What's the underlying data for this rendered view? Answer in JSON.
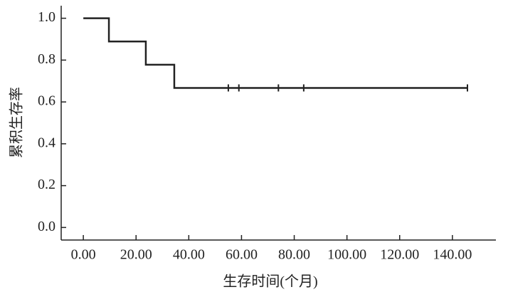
{
  "chart_data": {
    "type": "line",
    "step": "post",
    "x_label": "生存时间(个月)",
    "y_label": "累积生存率",
    "x": [
      0,
      9.7,
      23.7,
      34.5,
      145.7
    ],
    "values": [
      1,
      0.889,
      0.778,
      0.667,
      0.667
    ],
    "censored_x": [
      55,
      59,
      74,
      83.6,
      145.7
    ],
    "censored_values": [
      0.667,
      0.667,
      0.667,
      0.667,
      0.667
    ],
    "color": "#222222",
    "xlim": [
      -8.4,
      156.5
    ],
    "ylim": [
      -0.06,
      1.06
    ],
    "xticks": [
      {
        "value": 0,
        "label": "0.00"
      },
      {
        "value": 20,
        "label": "20.00"
      },
      {
        "value": 40,
        "label": "40.00"
      },
      {
        "value": 60,
        "label": "60.00"
      },
      {
        "value": 80,
        "label": "80.00"
      },
      {
        "value": 100,
        "label": "100.00"
      },
      {
        "value": 120,
        "label": "120.00"
      },
      {
        "value": 140,
        "label": "140.00"
      }
    ],
    "yticks": [
      {
        "value": 0,
        "label": "0.0"
      },
      0.2,
      0.4,
      0.6,
      0.8,
      {
        "value": 1,
        "label": "1.0"
      }
    ]
  }
}
